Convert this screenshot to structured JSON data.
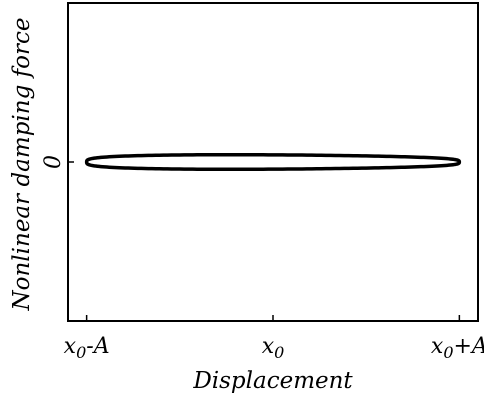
{
  "chart_data": {
    "type": "line",
    "title": "",
    "xlabel": "Displacement",
    "ylabel": "Nonlinear damping force",
    "x_ticks": [
      {
        "value": -1,
        "label_main": "x",
        "label_sub": "0",
        "label_suffix": "-A"
      },
      {
        "value": 0,
        "label_main": "x",
        "label_sub": "0",
        "label_suffix": ""
      },
      {
        "value": 1,
        "label_main": "x",
        "label_sub": "0",
        "label_suffix": "+A"
      }
    ],
    "y_ticks": [
      {
        "value": 0,
        "label": "0"
      }
    ],
    "xlim": [
      -1.1,
      1.1
    ],
    "ylim": [
      -1.0,
      1.0
    ],
    "grid": false,
    "series": [
      {
        "curve": "closed-loop",
        "x_amplitude": 1.0,
        "y_amplitude": 0.045,
        "color": "#000000"
      }
    ]
  }
}
